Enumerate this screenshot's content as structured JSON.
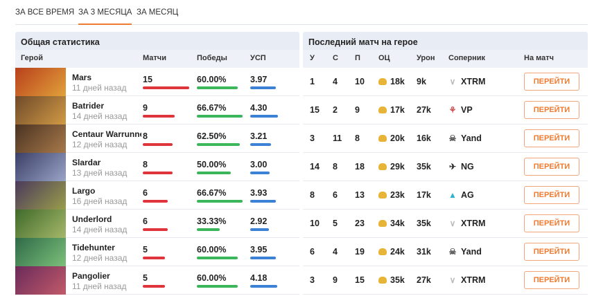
{
  "tabs": [
    {
      "label": "ЗА ВСЕ ВРЕМЯ"
    },
    {
      "label": "ЗА 3 МЕСЯЦА",
      "active": true
    },
    {
      "label": "ЗА МЕСЯЦ"
    }
  ],
  "left": {
    "title": "Общая статистика",
    "cols": {
      "hero": "Герой",
      "matches": "Матчи",
      "wins": "Победы",
      "usp": "УСП"
    }
  },
  "right": {
    "title": "Последний матч на герое",
    "cols": {
      "k": "У",
      "d": "С",
      "a": "П",
      "nw": "ОЦ",
      "dmg": "Урон",
      "opp": "Соперник",
      "go": "На матч"
    }
  },
  "colors": {
    "matches": "#e0343c",
    "wins": "#3cb65a",
    "usp": "#3b82d6",
    "accent": "#f07a2e"
  },
  "heroes": [
    {
      "name": "Mars",
      "ago": "11 дней назад",
      "matches": "15",
      "wins": "60.00%",
      "usp": "3.97",
      "k": "1",
      "d": "4",
      "a": "10",
      "nw": "18k",
      "dmg": "9k",
      "opp": "XTRM",
      "opp_icon": "xtrm-logo",
      "go": "ПЕРЕЙТИ",
      "c1": "#b8401c",
      "c2": "#e2a13a"
    },
    {
      "name": "Batrider",
      "ago": "14 дней назад",
      "matches": "9",
      "wins": "66.67%",
      "usp": "4.30",
      "k": "15",
      "d": "2",
      "a": "9",
      "nw": "17k",
      "dmg": "27k",
      "opp": "VP",
      "opp_icon": "vp-logo",
      "go": "ПЕРЕЙТИ",
      "c1": "#6e4a2a",
      "c2": "#d29a45"
    },
    {
      "name": "Centaur Warrunner",
      "ago": "12 дней назад",
      "matches": "8",
      "wins": "62.50%",
      "usp": "3.21",
      "k": "3",
      "d": "11",
      "a": "8",
      "nw": "20k",
      "dmg": "16k",
      "opp": "Yand",
      "opp_icon": "yand-logo",
      "go": "ПЕРЕЙТИ",
      "c1": "#4a3322",
      "c2": "#a8794a"
    },
    {
      "name": "Slardar",
      "ago": "13 дней назад",
      "matches": "8",
      "wins": "50.00%",
      "usp": "3.00",
      "k": "14",
      "d": "8",
      "a": "18",
      "nw": "29k",
      "dmg": "35k",
      "opp": "NG",
      "opp_icon": "ng-logo",
      "go": "ПЕРЕЙТИ",
      "c1": "#3b3f66",
      "c2": "#9aa4c8"
    },
    {
      "name": "Largo",
      "ago": "16 дней назад",
      "matches": "6",
      "wins": "66.67%",
      "usp": "3.93",
      "k": "8",
      "d": "6",
      "a": "13",
      "nw": "23k",
      "dmg": "17k",
      "opp": "AG",
      "opp_icon": "ag-logo",
      "go": "ПЕРЕЙТИ",
      "c1": "#4b3a5c",
      "c2": "#9a9d4a"
    },
    {
      "name": "Underlord",
      "ago": "14 дней назад",
      "matches": "6",
      "wins": "33.33%",
      "usp": "2.92",
      "k": "10",
      "d": "5",
      "a": "23",
      "nw": "34k",
      "dmg": "35k",
      "opp": "XTRM",
      "opp_icon": "xtrm-logo",
      "go": "ПЕРЕЙТИ",
      "c1": "#3f6a2a",
      "c2": "#a6b86a"
    },
    {
      "name": "Tidehunter",
      "ago": "12 дней назад",
      "matches": "5",
      "wins": "60.00%",
      "usp": "3.95",
      "k": "6",
      "d": "4",
      "a": "19",
      "nw": "24k",
      "dmg": "31k",
      "opp": "Yand",
      "opp_icon": "yand-logo",
      "go": "ПЕРЕЙТИ",
      "c1": "#2f6a48",
      "c2": "#7cc07a"
    },
    {
      "name": "Pangolier",
      "ago": "11 дней назад",
      "matches": "5",
      "wins": "60.00%",
      "usp": "4.18",
      "k": "3",
      "d": "9",
      "a": "15",
      "nw": "35k",
      "dmg": "27k",
      "opp": "XTRM",
      "opp_icon": "xtrm-logo",
      "go": "ПЕРЕЙТИ",
      "c1": "#6a2a5a",
      "c2": "#c25a6a"
    }
  ]
}
